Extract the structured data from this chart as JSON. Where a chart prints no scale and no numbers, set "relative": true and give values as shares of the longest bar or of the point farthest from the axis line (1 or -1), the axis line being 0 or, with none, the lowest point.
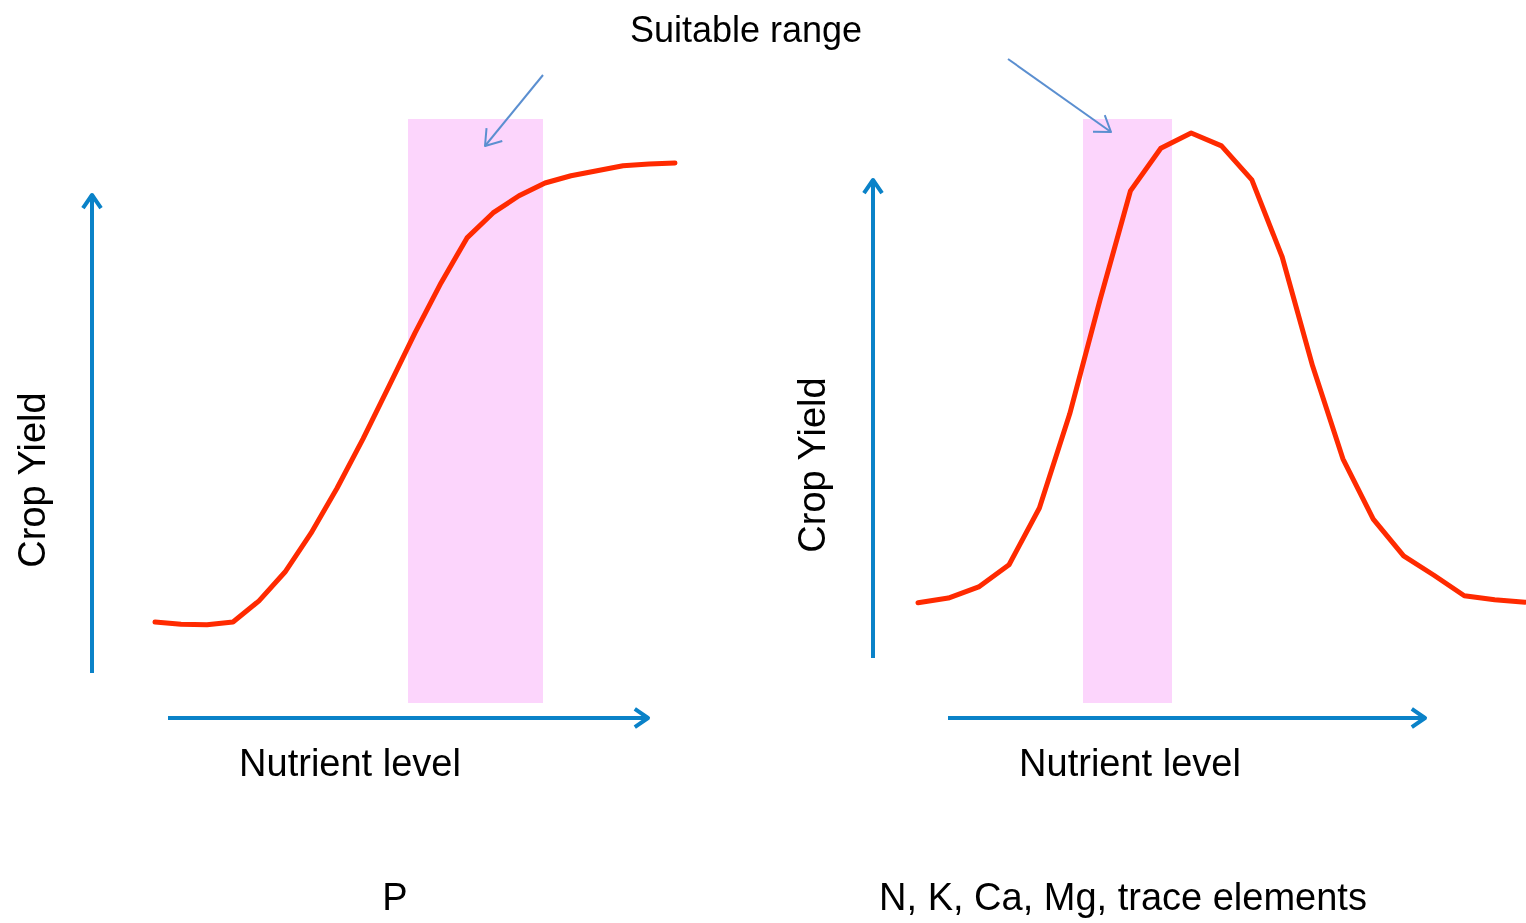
{
  "chart_data": [
    {
      "type": "line",
      "title": "P",
      "xlabel": "Nutrient level",
      "ylabel": "Crop Yield",
      "relative": true,
      "color": "#ff2a00",
      "categories": [
        null,
        null,
        null,
        null,
        null,
        null,
        null,
        null,
        null,
        null,
        null,
        null,
        null,
        null,
        null,
        null,
        null,
        null,
        null,
        null,
        null
      ],
      "values": [
        0.173,
        0.169,
        0.168,
        0.173,
        0.211,
        0.263,
        0.333,
        0.414,
        0.503,
        0.598,
        0.694,
        0.784,
        0.865,
        0.91,
        0.941,
        0.964,
        0.977,
        0.986,
        0.995,
        0.998,
        1
      ],
      "annotations": [
        "Suitable range"
      ]
    },
    {
      "type": "line",
      "title": "N, K, Ca, Mg, trace elements",
      "xlabel": "Nutrient level",
      "ylabel": "Crop Yield",
      "relative": true,
      "color": "#ff2a00",
      "categories": [
        null,
        null,
        null,
        null,
        null,
        null,
        null,
        null,
        null,
        null,
        null,
        null,
        null,
        null,
        null,
        null,
        null,
        null,
        null,
        null,
        null
      ],
      "values": [
        0.197,
        0.205,
        0.224,
        0.262,
        0.359,
        0.52,
        0.715,
        0.901,
        0.974,
        1,
        0.978,
        0.92,
        0.788,
        0.602,
        0.443,
        0.34,
        0.277,
        0.244,
        0.209,
        0.202,
        0.198
      ]
    }
  ]
}
